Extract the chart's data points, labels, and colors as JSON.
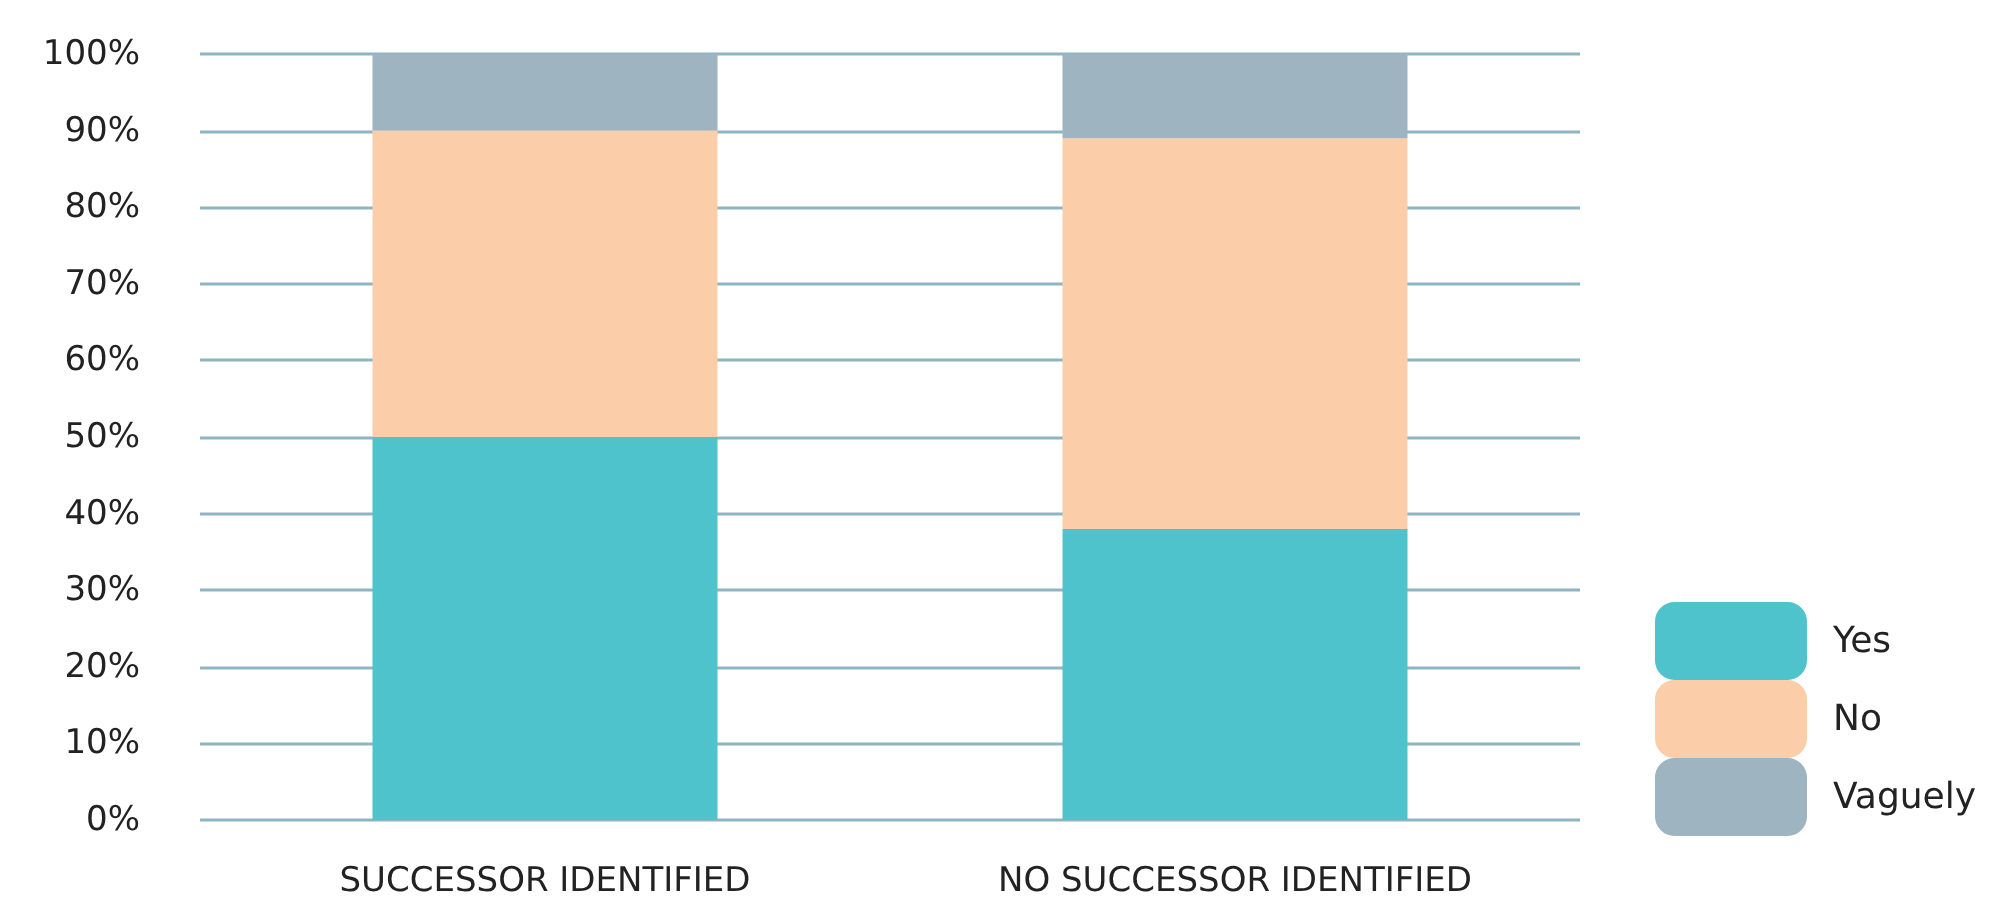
{
  "chart_data": {
    "type": "bar",
    "stacked": true,
    "categories": [
      "SUCCESSOR IDENTIFIED",
      "NO SUCCESSOR IDENTIFIED"
    ],
    "series": [
      {
        "name": "Yes",
        "color": "#4fc3cc",
        "values": [
          50,
          38
        ]
      },
      {
        "name": "No",
        "color": "#fbcea9",
        "values": [
          40,
          51
        ]
      },
      {
        "name": "Vaguely",
        "color": "#9eb4c1",
        "values": [
          10,
          11
        ]
      }
    ],
    "ylim": [
      0,
      100
    ],
    "yticks": [
      {
        "value": 0,
        "label": "0%"
      },
      {
        "value": 10,
        "label": "10%"
      },
      {
        "value": 20,
        "label": "20%"
      },
      {
        "value": 30,
        "label": "30%"
      },
      {
        "value": 40,
        "label": "40%"
      },
      {
        "value": 50,
        "label": "50%"
      },
      {
        "value": 60,
        "label": "60%"
      },
      {
        "value": 70,
        "label": "70%"
      },
      {
        "value": 80,
        "label": "80%"
      },
      {
        "value": 90,
        "label": "90%"
      },
      {
        "value": 100,
        "label": "100%"
      }
    ],
    "grid": "y",
    "legend": "bottom right"
  }
}
